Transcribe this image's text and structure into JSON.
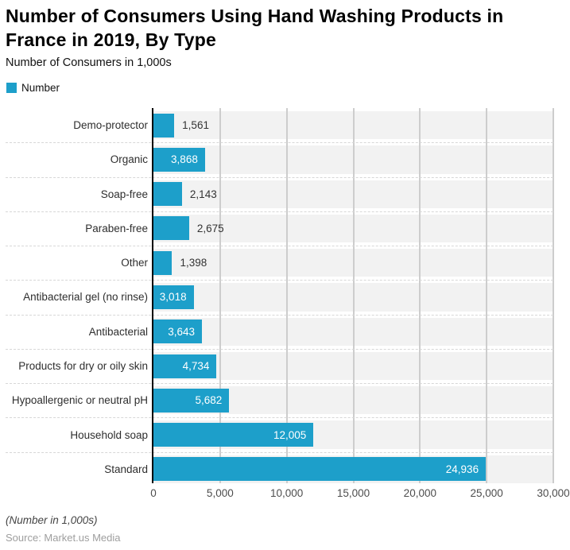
{
  "title": "Number of Consumers Using Hand Washing Products in France in 2019, By Type",
  "subtitle": "Number of Consumers in 1,000s",
  "legend": {
    "label": "Number",
    "color": "#1d9fca"
  },
  "chart_data": {
    "type": "bar",
    "orientation": "horizontal",
    "title": "Number of Consumers Using Hand Washing Products in France in 2019, By Type",
    "xlabel": "",
    "ylabel": "",
    "categories": [
      "Demo-protector",
      "Organic",
      "Soap-free",
      "Paraben-free",
      "Other",
      "Antibacterial gel (no rinse)",
      "Antibacterial",
      "Products for dry or oily skin",
      "Hypoallergenic or neutral pH",
      "Household soap",
      "Standard"
    ],
    "values": [
      1561,
      3868,
      2143,
      2675,
      1398,
      3018,
      3643,
      4734,
      5682,
      12005,
      24936
    ],
    "value_labels": [
      "1,561",
      "3,868",
      "2,143",
      "2,675",
      "1,398",
      "3,018",
      "3,643",
      "4,734",
      "5,682",
      "12,005",
      "24,936"
    ],
    "xlim": [
      0,
      30000
    ],
    "x_tick_values": [
      0,
      5000,
      10000,
      15000,
      20000,
      25000,
      30000
    ],
    "x_tick_labels": [
      "0",
      "5,000",
      "10,000",
      "15,000",
      "20,000",
      "25,000",
      "30,000"
    ],
    "bar_color": "#1d9fca",
    "grid": true,
    "band_color": "#f2f2f2",
    "legend_position": "top-left",
    "legend_entries": [
      "Number"
    ]
  },
  "footer": {
    "note": "(Number in 1,000s)",
    "source": "Source: Market.us Media"
  }
}
